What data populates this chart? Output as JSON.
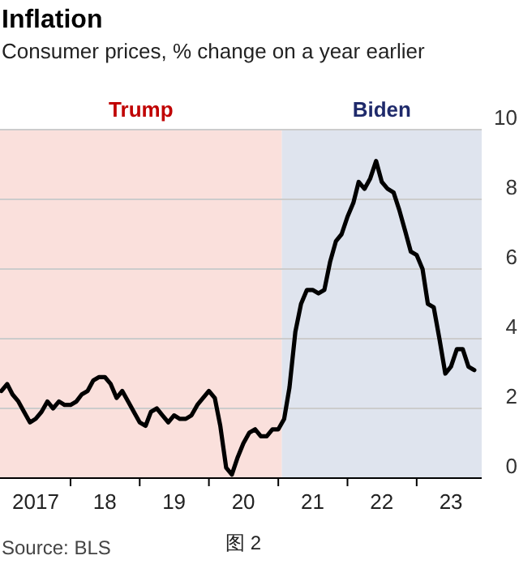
{
  "chart_data": {
    "type": "line",
    "title": "Inflation",
    "subtitle": "Consumer prices, % change on a year earlier",
    "x": [
      "2017-01",
      "2017-02",
      "2017-03",
      "2017-04",
      "2017-05",
      "2017-06",
      "2017-07",
      "2017-08",
      "2017-09",
      "2017-10",
      "2017-11",
      "2017-12",
      "2018-01",
      "2018-02",
      "2018-03",
      "2018-04",
      "2018-05",
      "2018-06",
      "2018-07",
      "2018-08",
      "2018-09",
      "2018-10",
      "2018-11",
      "2018-12",
      "2019-01",
      "2019-02",
      "2019-03",
      "2019-04",
      "2019-05",
      "2019-06",
      "2019-07",
      "2019-08",
      "2019-09",
      "2019-10",
      "2019-11",
      "2019-12",
      "2020-01",
      "2020-02",
      "2020-03",
      "2020-04",
      "2020-05",
      "2020-06",
      "2020-07",
      "2020-08",
      "2020-09",
      "2020-10",
      "2020-11",
      "2020-12",
      "2021-01",
      "2021-02",
      "2021-03",
      "2021-04",
      "2021-05",
      "2021-06",
      "2021-07",
      "2021-08",
      "2021-09",
      "2021-10",
      "2021-11",
      "2021-12",
      "2022-01",
      "2022-02",
      "2022-03",
      "2022-04",
      "2022-05",
      "2022-06",
      "2022-07",
      "2022-08",
      "2022-09",
      "2022-10",
      "2022-11",
      "2022-12",
      "2023-01",
      "2023-02",
      "2023-03",
      "2023-04",
      "2023-05",
      "2023-06",
      "2023-07",
      "2023-08",
      "2023-09",
      "2023-10",
      "2023-11"
    ],
    "series": [
      {
        "color": "#000000",
        "values": [
          2.5,
          2.7,
          2.4,
          2.2,
          1.9,
          1.6,
          1.7,
          1.9,
          2.2,
          2.0,
          2.2,
          2.1,
          2.1,
          2.2,
          2.4,
          2.5,
          2.8,
          2.9,
          2.9,
          2.7,
          2.3,
          2.5,
          2.2,
          1.9,
          1.6,
          1.5,
          1.9,
          2.0,
          1.8,
          1.6,
          1.8,
          1.7,
          1.7,
          1.8,
          2.1,
          2.3,
          2.5,
          2.3,
          1.5,
          0.3,
          0.1,
          0.6,
          1.0,
          1.3,
          1.4,
          1.2,
          1.2,
          1.4,
          1.4,
          1.7,
          2.6,
          4.2,
          5.0,
          5.4,
          5.4,
          5.3,
          5.4,
          6.2,
          6.8,
          7.0,
          7.5,
          7.9,
          8.5,
          8.3,
          8.6,
          9.1,
          8.5,
          8.3,
          8.2,
          7.7,
          7.1,
          6.5,
          6.4,
          6.0,
          5.0,
          4.9,
          4.0,
          3.0,
          3.2,
          3.7,
          3.7,
          3.2,
          3.1
        ]
      }
    ],
    "xlim": [
      "2016-12-25",
      "2023-12-10"
    ],
    "xticks": [
      {
        "value": "2017-07-01",
        "label": "2017"
      },
      {
        "value": "2018-07-01",
        "label": "18"
      },
      {
        "value": "2019-07-01",
        "label": "19"
      },
      {
        "value": "2020-07-01",
        "label": "20"
      },
      {
        "value": "2021-07-01",
        "label": "21"
      },
      {
        "value": "2022-07-01",
        "label": "22"
      },
      {
        "value": "2023-07-01",
        "label": "23"
      },
      {
        "value": "2018-01-01",
        "label": null
      },
      {
        "value": "2019-01-01",
        "label": null
      },
      {
        "value": "2020-01-01",
        "label": null
      },
      {
        "value": "2021-01-01",
        "label": null
      },
      {
        "value": "2022-01-01",
        "label": null
      },
      {
        "value": "2023-01-01",
        "label": null
      }
    ],
    "ylim": [
      0,
      10
    ],
    "yticks": [
      0,
      2,
      4,
      6,
      8,
      10
    ],
    "grid": "y",
    "line_style": "solid",
    "marker": "none",
    "bands": [
      {
        "axis": "x",
        "from": "2016-12-25",
        "to": "2021-01-20",
        "label": "Trump",
        "color": "#fae0dc"
      },
      {
        "axis": "x",
        "from": "2021-01-20",
        "to": "2023-12-10",
        "label": "Biden",
        "color": "#dfe4ee"
      }
    ],
    "annotations": [
      "Source: BLS",
      "图 2"
    ]
  }
}
